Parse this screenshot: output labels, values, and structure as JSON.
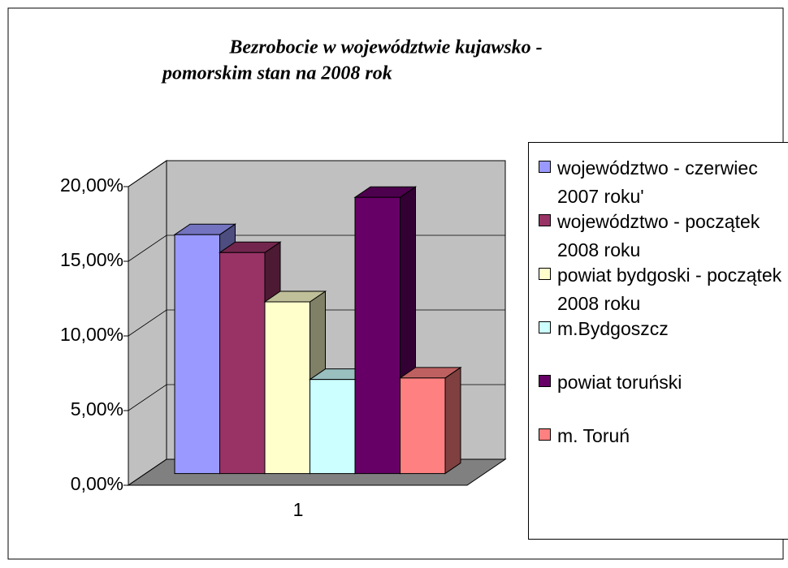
{
  "chart_data": {
    "type": "bar3d",
    "title": [
      "Bezrobocie w województwie kujawsko -",
      "pomorskim stan na 2008 rok"
    ],
    "categories": [
      "1"
    ],
    "series": [
      {
        "name": "województwo - czerwiec 2007 roku'",
        "color": "#9999ff",
        "values": [
          16.0
        ]
      },
      {
        "name": "województwo - początek 2008 roku",
        "color": "#993366",
        "values": [
          14.8
        ]
      },
      {
        "name": "powiat bydgoski - początek 2008 roku",
        "color": "#ffffcc",
        "values": [
          11.5
        ]
      },
      {
        "name": "m.Bydgoszcz",
        "color": "#ccffff",
        "values": [
          6.3
        ]
      },
      {
        "name": "powiat toruński",
        "color": "#660066",
        "values": [
          18.5
        ]
      },
      {
        "name": "m. Toruń",
        "color": "#ff8080",
        "values": [
          6.4
        ]
      }
    ],
    "ylim": [
      0,
      20
    ],
    "yticks": [
      {
        "value": 0,
        "label": "0,00%"
      },
      {
        "value": 5,
        "label": "5,00%"
      },
      {
        "value": 10,
        "label": "10,00%"
      },
      {
        "value": 15,
        "label": "15,00%"
      },
      {
        "value": 20,
        "label": "20,00%"
      }
    ],
    "grid": true
  }
}
